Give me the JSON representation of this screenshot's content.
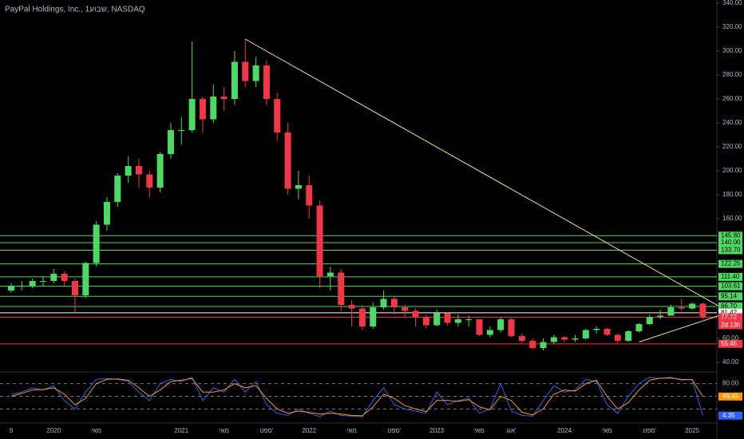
{
  "chart_data": {
    "type": "candlestick",
    "title": "PayPal Holdings, Inc., 1שבוע, NASDAQ",
    "categories": [
      "9",
      null,
      null,
      null,
      "2020",
      null,
      null,
      null,
      "מאי",
      null,
      null,
      null,
      null,
      null,
      null,
      null,
      "2021",
      null,
      null,
      null,
      "מאי",
      null,
      null,
      null,
      "ספט'",
      null,
      null,
      null,
      "2022",
      null,
      null,
      null,
      "מאי",
      null,
      null,
      null,
      "ספט'",
      null,
      null,
      null,
      "2023",
      null,
      null,
      null,
      "מאי",
      null,
      null,
      "אוג'",
      null,
      null,
      null,
      null,
      "2024",
      null,
      null,
      null,
      "מאי",
      null,
      null,
      null,
      "ספט'",
      null,
      null,
      null,
      "2025",
      null
    ],
    "open": [
      100,
      104,
      104,
      108,
      108,
      114,
      108,
      96,
      123,
      155,
      174,
      196,
      204,
      197,
      186,
      214,
      234,
      234,
      260,
      243,
      262,
      260,
      291,
      275,
      288,
      260,
      232,
      185,
      188,
      171,
      112,
      115,
      88,
      85,
      70,
      86,
      93,
      86,
      83,
      78,
      71,
      81,
      73,
      76,
      76,
      63,
      67,
      76,
      62,
      58,
      52,
      57,
      61,
      59,
      60,
      67,
      68,
      63,
      58,
      66,
      72,
      78,
      79,
      86,
      85,
      89
    ],
    "high": [
      106,
      108,
      110,
      112,
      118,
      116,
      110,
      124,
      158,
      178,
      198,
      212,
      210,
      200,
      216,
      240,
      245,
      308,
      262,
      272,
      270,
      300,
      310,
      295,
      292,
      265,
      240,
      200,
      196,
      175,
      120,
      118,
      92,
      88,
      90,
      100,
      95,
      88,
      85,
      80,
      84,
      82,
      80,
      79,
      76,
      70,
      78,
      77,
      64,
      60,
      60,
      63,
      62,
      63,
      68,
      70,
      69,
      64,
      67,
      73,
      80,
      84,
      88,
      93,
      90,
      90
    ],
    "low": [
      98,
      100,
      102,
      104,
      106,
      104,
      82,
      94,
      120,
      150,
      170,
      190,
      186,
      178,
      182,
      210,
      222,
      232,
      232,
      240,
      250,
      255,
      270,
      270,
      255,
      225,
      180,
      176,
      160,
      102,
      100,
      83,
      70,
      67,
      68,
      84,
      80,
      78,
      70,
      68,
      70,
      71,
      70,
      70,
      62,
      61,
      65,
      61,
      56,
      51,
      50,
      55,
      57,
      57,
      59,
      64,
      62,
      56,
      57,
      65,
      71,
      76,
      79,
      83,
      84,
      76
    ],
    "close": [
      104,
      104,
      108,
      108,
      114,
      108,
      96,
      123,
      155,
      174,
      196,
      204,
      197,
      186,
      214,
      234,
      234,
      260,
      243,
      262,
      260,
      291,
      275,
      288,
      260,
      232,
      185,
      188,
      171,
      112,
      115,
      88,
      85,
      70,
      86,
      93,
      86,
      83,
      78,
      71,
      81,
      73,
      76,
      76,
      63,
      67,
      76,
      62,
      58,
      52,
      57,
      61,
      59,
      60,
      67,
      68,
      63,
      58,
      66,
      72,
      78,
      79,
      86,
      85,
      89,
      77.72
    ],
    "up_color": "#4cd964",
    "down_color": "#f23645",
    "ylim": [
      40,
      340
    ],
    "yticks": [
      {
        "value": 40,
        "label": "40.00"
      },
      {
        "value": 60,
        "label": "60.00"
      },
      {
        "value": 160,
        "label": "160.00"
      },
      {
        "value": 180,
        "label": "180.00"
      },
      {
        "value": 200,
        "label": "200.00"
      },
      {
        "value": 220,
        "label": "220.00"
      },
      {
        "value": 240,
        "label": "240.00"
      },
      {
        "value": 260,
        "label": "260.00"
      },
      {
        "value": 280,
        "label": "280.00"
      },
      {
        "value": 300,
        "label": "300.00"
      },
      {
        "value": 320,
        "label": "320.00"
      },
      {
        "value": 340,
        "label": "340.00"
      }
    ],
    "levels": [
      {
        "value": 145.8,
        "label": "145.80",
        "color": "#4cd964"
      },
      {
        "value": 140,
        "label": "140.00",
        "color": "#4cd964"
      },
      {
        "value": 133.7,
        "label": "133.70",
        "color": "#4cd964"
      },
      {
        "value": 122.25,
        "label": "122.25",
        "color": "#4cd964"
      },
      {
        "value": 111.4,
        "label": "111.40",
        "color": "#4cd964"
      },
      {
        "value": 103.61,
        "label": "103.61",
        "color": "#4cd964"
      },
      {
        "value": 95.14,
        "label": "95.14",
        "color": "#4cd964"
      },
      {
        "value": 86.7,
        "label": "86.70",
        "color": "#4cd964"
      },
      {
        "value": 81.42,
        "label": "81.42",
        "color": "#ffffff"
      },
      {
        "value": 77.72,
        "label": "77.72",
        "color": "#f23645",
        "note": "2d 13h"
      },
      {
        "value": 55.45,
        "label": "55.45",
        "color": "#f23645"
      }
    ],
    "trendlines": [
      {
        "x": [
          22,
          67.5
        ],
        "y": [
          310,
          82
        ],
        "color": "#f5e27a"
      },
      {
        "x": [
          59,
          67.5
        ],
        "y": [
          57,
          82
        ],
        "color": "#f5e27a"
      }
    ],
    "oscillator": {
      "ylim": [
        0,
        100
      ],
      "yticks": [
        {
          "value": 80,
          "label": "80.00"
        }
      ],
      "levels": [
        80,
        50,
        20
      ],
      "series": [
        {
          "color": "#2962ff",
          "values": [
            55,
            60,
            70,
            65,
            75,
            40,
            20,
            60,
            90,
            92,
            90,
            85,
            60,
            40,
            80,
            90,
            85,
            95,
            40,
            70,
            60,
            90,
            60,
            85,
            30,
            10,
            5,
            20,
            10,
            2,
            15,
            5,
            3,
            2,
            40,
            70,
            30,
            20,
            15,
            10,
            60,
            30,
            40,
            45,
            10,
            20,
            80,
            15,
            5,
            3,
            40,
            75,
            60,
            65,
            90,
            85,
            30,
            10,
            50,
            80,
            95,
            92,
            95,
            88,
            90,
            4.35
          ]
        },
        {
          "color": "#ff9800",
          "values": [
            50,
            57,
            65,
            66,
            70,
            55,
            30,
            45,
            80,
            90,
            91,
            88,
            70,
            50,
            65,
            85,
            88,
            92,
            60,
            60,
            65,
            80,
            70,
            75,
            45,
            20,
            10,
            15,
            12,
            8,
            10,
            8,
            5,
            4,
            25,
            55,
            45,
            28,
            20,
            14,
            40,
            40,
            38,
            42,
            25,
            18,
            50,
            40,
            12,
            6,
            20,
            55,
            65,
            62,
            80,
            88,
            50,
            20,
            35,
            65,
            88,
            93,
            93,
            90,
            89,
            49.45
          ]
        }
      ]
    }
  }
}
